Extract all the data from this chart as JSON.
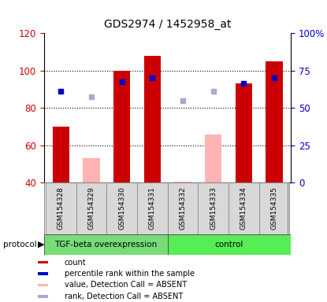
{
  "title": "GDS2974 / 1452958_at",
  "samples": [
    "GSM154328",
    "GSM154329",
    "GSM154330",
    "GSM154331",
    "GSM154332",
    "GSM154333",
    "GSM154334",
    "GSM154335"
  ],
  "bar_values": [
    70,
    null,
    100,
    108,
    null,
    null,
    93,
    105
  ],
  "bar_absent_values": [
    null,
    53,
    null,
    null,
    null,
    66,
    null,
    null
  ],
  "bar_absent_small": [
    null,
    null,
    null,
    null,
    40.5,
    null,
    null,
    null
  ],
  "dot_values": [
    89,
    null,
    94,
    96,
    null,
    null,
    93,
    96
  ],
  "dot_absent_values": [
    null,
    86,
    null,
    null,
    84,
    89,
    null,
    null
  ],
  "bar_color": "#cc0000",
  "bar_absent_color": "#ffb3b3",
  "dot_color": "#0000cc",
  "dot_absent_color": "#aaaacc",
  "ylim_left": [
    40,
    120
  ],
  "ylim_right": [
    0,
    100
  ],
  "yticks_left": [
    40,
    60,
    80,
    100,
    120
  ],
  "yticks_right": [
    0,
    25,
    50,
    75,
    100
  ],
  "ytick_labels_right": [
    "0",
    "25",
    "50",
    "75",
    "100%"
  ],
  "groups": [
    {
      "label": "TGF-beta overexpression",
      "indices": [
        0,
        1,
        2,
        3
      ],
      "color": "#77dd77"
    },
    {
      "label": "control",
      "indices": [
        4,
        5,
        6,
        7
      ],
      "color": "#55ee55"
    }
  ],
  "protocol_label": "protocol",
  "left_tick_color": "#cc0000",
  "right_tick_color": "#0000cc",
  "bar_width": 0.55,
  "figsize": [
    4.15,
    3.84
  ],
  "dpi": 100,
  "legend_items": [
    {
      "label": "count",
      "color": "#cc0000"
    },
    {
      "label": "percentile rank within the sample",
      "color": "#0000cc"
    },
    {
      "label": "value, Detection Call = ABSENT",
      "color": "#ffb3b3"
    },
    {
      "label": "rank, Detection Call = ABSENT",
      "color": "#aaaacc"
    }
  ]
}
